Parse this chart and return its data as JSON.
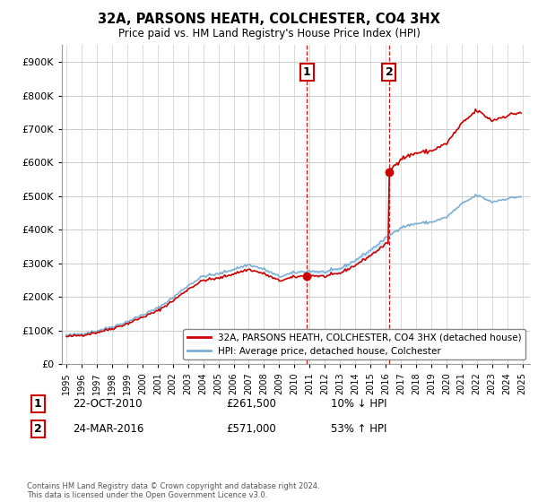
{
  "title": "32A, PARSONS HEATH, COLCHESTER, CO4 3HX",
  "subtitle": "Price paid vs. HM Land Registry's House Price Index (HPI)",
  "ylabel_ticks": [
    0,
    100000,
    200000,
    300000,
    400000,
    500000,
    600000,
    700000,
    800000,
    900000
  ],
  "ylim": [
    0,
    950000
  ],
  "xlim_start": 1994.7,
  "xlim_end": 2025.5,
  "sale1_price": 261500,
  "sale1_label": "1",
  "sale1_x": 2010.81,
  "sale2_price": 571000,
  "sale2_label": "2",
  "sale2_x": 2016.23,
  "legend_property": "32A, PARSONS HEATH, COLCHESTER, CO4 3HX (detached house)",
  "legend_hpi": "HPI: Average price, detached house, Colchester",
  "footer": "Contains HM Land Registry data © Crown copyright and database right 2024.\nThis data is licensed under the Open Government Licence v3.0.",
  "property_color": "#cc0000",
  "hpi_color": "#7bafd4",
  "shade_color": "#ddeeff",
  "background_color": "#ffffff",
  "grid_color": "#cccccc"
}
